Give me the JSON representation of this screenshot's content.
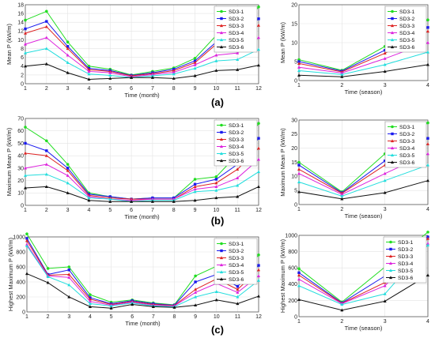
{
  "panel_labels": [
    "(a)",
    "(b)",
    "(c)"
  ],
  "chart_data": [
    {
      "type": "line",
      "panel": "a-left",
      "xlabel": "Time (month)",
      "ylabel": "Mean P (kW/m)",
      "x": [
        1,
        2,
        3,
        4,
        5,
        6,
        7,
        8,
        9,
        10,
        11,
        12
      ],
      "xticks": [
        1,
        2,
        3,
        4,
        5,
        6,
        7,
        8,
        9,
        10,
        11,
        12
      ],
      "xlim": [
        1,
        12
      ],
      "ylim": [
        0,
        18
      ],
      "yticks": [
        0,
        2,
        4,
        6,
        8,
        10,
        12,
        14,
        16,
        18
      ],
      "grid": true,
      "legend_position": "top-right",
      "series": [
        {
          "name": "SD3-1",
          "color": "#22dd22",
          "marker": "circle",
          "values": [
            14.5,
            16.5,
            9.5,
            4.0,
            3.3,
            2.0,
            2.8,
            3.6,
            5.8,
            11.0,
            11.3,
            17.5
          ]
        },
        {
          "name": "SD3-2",
          "color": "#1a1aee",
          "marker": "square",
          "values": [
            12.5,
            14.2,
            8.5,
            3.5,
            3.0,
            1.9,
            2.5,
            3.3,
            5.2,
            9.5,
            10.0,
            14.8
          ]
        },
        {
          "name": "SD3-3",
          "color": "#dd2222",
          "marker": "triangle",
          "values": [
            11.5,
            13.0,
            8.0,
            3.2,
            2.8,
            1.8,
            2.3,
            3.0,
            4.8,
            9.0,
            9.5,
            13.3
          ]
        },
        {
          "name": "SD3-4",
          "color": "#dd22dd",
          "marker": "triangle",
          "values": [
            9.0,
            10.5,
            6.5,
            2.8,
            2.5,
            1.6,
            2.1,
            2.6,
            4.3,
            6.5,
            7.0,
            10.5
          ]
        },
        {
          "name": "SD3-5",
          "color": "#22dddd",
          "marker": "triangle",
          "values": [
            7.0,
            8.0,
            4.8,
            2.2,
            1.9,
            1.4,
            1.8,
            2.2,
            3.5,
            5.2,
            5.5,
            7.8
          ]
        },
        {
          "name": "SD3-6",
          "color": "#111111",
          "marker": "triangle",
          "values": [
            4.0,
            4.5,
            2.5,
            1.0,
            1.2,
            1.4,
            1.4,
            1.2,
            1.8,
            3.0,
            3.2,
            4.2
          ]
        }
      ]
    },
    {
      "type": "line",
      "panel": "a-right",
      "xlabel": "Time (season)",
      "ylabel": "Mean P (kW/m)",
      "x": [
        1,
        2,
        3,
        4
      ],
      "xticks": [
        1,
        2,
        3,
        4
      ],
      "xlim": [
        1,
        4
      ],
      "ylim": [
        0,
        20
      ],
      "yticks": [
        0,
        5,
        10,
        15,
        20
      ],
      "grid": true,
      "legend_position": "top-right",
      "series": [
        {
          "name": "SD3-1",
          "color": "#22dd22",
          "marker": "circle",
          "values": [
            5.5,
            2.7,
            9.0,
            16.0
          ]
        },
        {
          "name": "SD3-2",
          "color": "#1a1aee",
          "marker": "square",
          "values": [
            5.0,
            2.5,
            8.0,
            14.0
          ]
        },
        {
          "name": "SD3-3",
          "color": "#dd2222",
          "marker": "triangle",
          "values": [
            4.5,
            2.3,
            7.2,
            13.0
          ]
        },
        {
          "name": "SD3-4",
          "color": "#dd22dd",
          "marker": "triangle",
          "values": [
            3.5,
            2.0,
            5.8,
            10.0
          ]
        },
        {
          "name": "SD3-5",
          "color": "#22dddd",
          "marker": "triangle",
          "values": [
            2.6,
            1.6,
            4.2,
            7.5
          ]
        },
        {
          "name": "SD3-6",
          "color": "#111111",
          "marker": "triangle",
          "values": [
            1.4,
            1.0,
            2.4,
            4.2
          ]
        }
      ]
    },
    {
      "type": "line",
      "panel": "b-left",
      "xlabel": "Time (month)",
      "ylabel": "Maximum Mean P (kW/m)",
      "x": [
        1,
        2,
        3,
        4,
        5,
        6,
        7,
        8,
        9,
        10,
        11,
        12
      ],
      "xticks": [
        1,
        2,
        3,
        4,
        5,
        6,
        7,
        8,
        9,
        10,
        11,
        12
      ],
      "xlim": [
        1,
        12
      ],
      "ylim": [
        0,
        70
      ],
      "yticks": [
        0,
        10,
        20,
        30,
        40,
        50,
        60,
        70
      ],
      "grid": true,
      "legend_position": "top-right",
      "series": [
        {
          "name": "SD3-1",
          "color": "#22dd22",
          "marker": "circle",
          "values": [
            63,
            52,
            33,
            10,
            7,
            5,
            6,
            6,
            21,
            23,
            41,
            66
          ]
        },
        {
          "name": "SD3-2",
          "color": "#1a1aee",
          "marker": "square",
          "values": [
            50,
            44,
            30,
            9,
            7,
            5,
            6,
            6,
            17,
            21,
            33,
            54
          ]
        },
        {
          "name": "SD3-3",
          "color": "#dd2222",
          "marker": "triangle",
          "values": [
            42,
            40,
            28,
            8,
            6,
            5,
            5,
            5,
            15,
            18,
            29,
            46
          ]
        },
        {
          "name": "SD3-4",
          "color": "#dd22dd",
          "marker": "triangle",
          "values": [
            30,
            33,
            24,
            7,
            5,
            4,
            5,
            5,
            13,
            15,
            22,
            37
          ]
        },
        {
          "name": "SD3-5",
          "color": "#22dddd",
          "marker": "triangle",
          "values": [
            24,
            25,
            18,
            6,
            5,
            3,
            4,
            4,
            11,
            12,
            16,
            27
          ]
        },
        {
          "name": "SD3-6",
          "color": "#111111",
          "marker": "triangle",
          "values": [
            14,
            15,
            10,
            4,
            3,
            3,
            3,
            3,
            4,
            6,
            7,
            15
          ]
        }
      ]
    },
    {
      "type": "line",
      "panel": "b-right",
      "xlabel": "Time (season)",
      "ylabel": "Maximum Mean P (kW/m)",
      "x": [
        1,
        2,
        3,
        4
      ],
      "xticks": [
        1,
        2,
        3,
        4
      ],
      "xlim": [
        1,
        4
      ],
      "ylim": [
        0,
        30
      ],
      "yticks": [
        0,
        5,
        10,
        15,
        20,
        25,
        30
      ],
      "grid": true,
      "legend_position": "top-right",
      "series": [
        {
          "name": "SD3-1",
          "color": "#22dd22",
          "marker": "circle",
          "values": [
            15,
            4.5,
            18,
            29
          ]
        },
        {
          "name": "SD3-2",
          "color": "#1a1aee",
          "marker": "square",
          "values": [
            14,
            4.2,
            15.5,
            23.5
          ]
        },
        {
          "name": "SD3-3",
          "color": "#dd2222",
          "marker": "triangle",
          "values": [
            12.5,
            4.0,
            14,
            21.5
          ]
        },
        {
          "name": "SD3-4",
          "color": "#dd22dd",
          "marker": "triangle",
          "values": [
            11,
            3.6,
            11,
            18
          ]
        },
        {
          "name": "SD3-5",
          "color": "#22dddd",
          "marker": "triangle",
          "values": [
            8,
            3.0,
            8.5,
            14
          ]
        },
        {
          "name": "SD3-6",
          "color": "#111111",
          "marker": "triangle",
          "values": [
            4.5,
            2.0,
            4.2,
            8.5
          ]
        }
      ]
    },
    {
      "type": "line",
      "panel": "c-left",
      "xlabel": "Time (month)",
      "ylabel": "Highest Maximum P (kW/m)",
      "x": [
        1,
        2,
        3,
        4,
        5,
        6,
        7,
        8,
        9,
        10,
        11,
        12
      ],
      "xticks": [
        1,
        2,
        3,
        4,
        5,
        6,
        7,
        8,
        9,
        10,
        11,
        12
      ],
      "xlim": [
        1,
        12
      ],
      "ylim": [
        0,
        1000
      ],
      "yticks": [
        0,
        200,
        400,
        600,
        800,
        1000
      ],
      "grid": true,
      "legend_position": "top-right",
      "series": [
        {
          "name": "SD3-1",
          "color": "#22dd22",
          "marker": "circle",
          "values": [
            1040,
            580,
            600,
            230,
            130,
            160,
            120,
            95,
            480,
            610,
            410,
            760
          ]
        },
        {
          "name": "SD3-2",
          "color": "#1a1aee",
          "marker": "square",
          "values": [
            980,
            500,
            560,
            190,
            110,
            150,
            110,
            90,
            400,
            500,
            340,
            620
          ]
        },
        {
          "name": "SD3-3",
          "color": "#dd2222",
          "marker": "triangle",
          "values": [
            950,
            490,
            500,
            170,
            100,
            140,
            100,
            85,
            300,
            440,
            300,
            560
          ]
        },
        {
          "name": "SD3-4",
          "color": "#dd22dd",
          "marker": "triangle",
          "values": [
            900,
            480,
            460,
            140,
            90,
            130,
            90,
            80,
            260,
            380,
            260,
            480
          ]
        },
        {
          "name": "SD3-5",
          "color": "#22dddd",
          "marker": "triangle",
          "values": [
            880,
            470,
            360,
            110,
            80,
            120,
            80,
            70,
            200,
            270,
            200,
            420
          ]
        },
        {
          "name": "SD3-6",
          "color": "#111111",
          "marker": "triangle",
          "values": [
            510,
            390,
            200,
            70,
            50,
            100,
            70,
            60,
            90,
            160,
            110,
            210
          ]
        }
      ]
    },
    {
      "type": "line",
      "panel": "c-right",
      "xlabel": "Time (season)",
      "ylabel": "Highest Maximum P (kW/m)",
      "x": [
        1,
        2,
        3,
        4
      ],
      "xticks": [
        1,
        2,
        3,
        4
      ],
      "xlim": [
        1,
        4
      ],
      "ylim": [
        0,
        1000
      ],
      "yticks": [
        0,
        200,
        400,
        600,
        800,
        1000
      ],
      "grid": true,
      "legend_position": "top-right",
      "series": [
        {
          "name": "SD3-1",
          "color": "#22dd22",
          "marker": "circle",
          "values": [
            590,
            180,
            610,
            1040
          ]
        },
        {
          "name": "SD3-2",
          "color": "#1a1aee",
          "marker": "square",
          "values": [
            540,
            170,
            500,
            980
          ]
        },
        {
          "name": "SD3-3",
          "color": "#dd2222",
          "marker": "triangle",
          "values": [
            510,
            165,
            420,
            960
          ]
        },
        {
          "name": "SD3-4",
          "color": "#dd22dd",
          "marker": "triangle",
          "values": [
            460,
            160,
            380,
            900
          ]
        },
        {
          "name": "SD3-5",
          "color": "#22dddd",
          "marker": "triangle",
          "values": [
            380,
            150,
            280,
            880
          ]
        },
        {
          "name": "SD3-6",
          "color": "#111111",
          "marker": "triangle",
          "values": [
            210,
            80,
            190,
            510
          ]
        }
      ]
    }
  ]
}
